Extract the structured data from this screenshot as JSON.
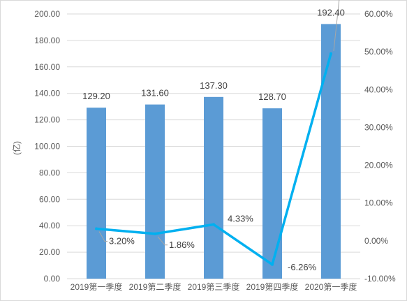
{
  "chart_data": {
    "type": "bar",
    "categories": [
      "2019第一季度",
      "2019第二季度",
      "2019第三季度",
      "2019第四季度",
      "2020第一季度"
    ],
    "series": [
      {
        "type": "bar",
        "axis": "left",
        "values": [
          129.2,
          131.6,
          137.3,
          128.7,
          192.4
        ],
        "labels": [
          "129.20",
          "131.60",
          "137.30",
          "128.70",
          "192.40"
        ],
        "color": "#5B9BD5"
      },
      {
        "type": "line",
        "axis": "right",
        "values": [
          3.2,
          1.86,
          4.33,
          -6.26,
          49.49
        ],
        "labels": [
          "3.20%",
          "1.86%",
          "4.33%",
          "-6.26%",
          "49.49%"
        ],
        "color": "#00B0F0"
      }
    ],
    "ylabel": "(亿)",
    "ylim": [
      0,
      200
    ],
    "y2lim": [
      -10,
      60
    ],
    "y_ticks": [
      "0.00",
      "20.00",
      "40.00",
      "60.00",
      "80.00",
      "100.00",
      "120.00",
      "140.00",
      "160.00",
      "180.00",
      "200.00"
    ],
    "y2_ticks": [
      "-10.00%",
      "0.00%",
      "10.00%",
      "20.00%",
      "30.00%",
      "40.00%",
      "50.00%",
      "60.00%"
    ],
    "grid": true,
    "legend": "none"
  }
}
